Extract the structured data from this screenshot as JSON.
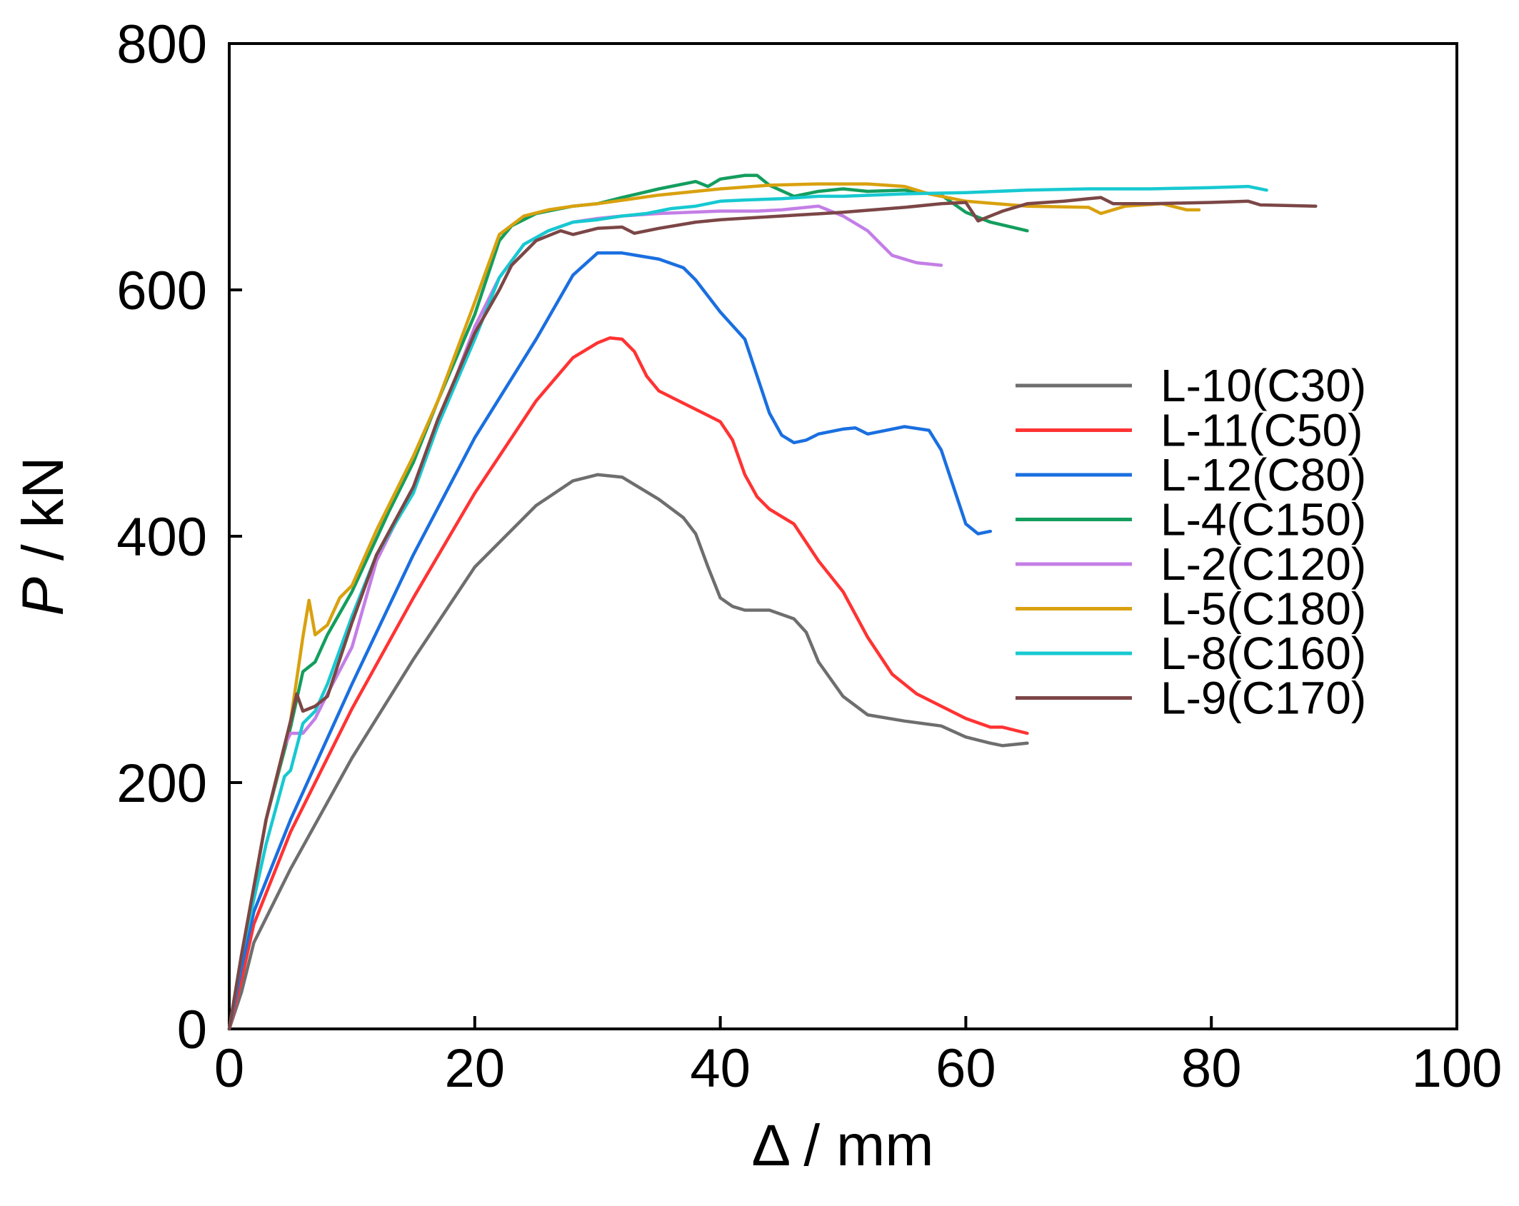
{
  "chart_data": {
    "type": "line",
    "title": "",
    "xlabel_symbol": "Δ",
    "xlabel_unit": " / mm",
    "ylabel_symbol": "P",
    "ylabel_unit": " / kN",
    "xlim": [
      0,
      100
    ],
    "ylim": [
      0,
      800
    ],
    "xticks": [
      0,
      20,
      40,
      60,
      80,
      100
    ],
    "yticks": [
      0,
      200,
      400,
      600,
      800
    ],
    "grid": false,
    "legend_position": "right-middle",
    "series": [
      {
        "name": "L-10(C30)",
        "color": "#6e6e6e",
        "points": [
          [
            0,
            0
          ],
          [
            1,
            30
          ],
          [
            2,
            70
          ],
          [
            5,
            130
          ],
          [
            10,
            220
          ],
          [
            15,
            300
          ],
          [
            20,
            375
          ],
          [
            25,
            425
          ],
          [
            28,
            445
          ],
          [
            30,
            450
          ],
          [
            32,
            448
          ],
          [
            35,
            430
          ],
          [
            37,
            415
          ],
          [
            38,
            402
          ],
          [
            39,
            375
          ],
          [
            40,
            350
          ],
          [
            41,
            343
          ],
          [
            42,
            340
          ],
          [
            44,
            340
          ],
          [
            46,
            333
          ],
          [
            47,
            322
          ],
          [
            48,
            298
          ],
          [
            50,
            270
          ],
          [
            52,
            255
          ],
          [
            55,
            250
          ],
          [
            58,
            246
          ],
          [
            60,
            237
          ],
          [
            62,
            232
          ],
          [
            63,
            230
          ],
          [
            65,
            232
          ]
        ]
      },
      {
        "name": "L-11(C50)",
        "color": "#ff3333",
        "points": [
          [
            0,
            0
          ],
          [
            1,
            40
          ],
          [
            2,
            85
          ],
          [
            5,
            160
          ],
          [
            10,
            260
          ],
          [
            15,
            350
          ],
          [
            20,
            435
          ],
          [
            25,
            510
          ],
          [
            28,
            545
          ],
          [
            30,
            557
          ],
          [
            31,
            561
          ],
          [
            32,
            560
          ],
          [
            33,
            550
          ],
          [
            34,
            530
          ],
          [
            35,
            518
          ],
          [
            37,
            508
          ],
          [
            39,
            498
          ],
          [
            40,
            493
          ],
          [
            41,
            478
          ],
          [
            42,
            450
          ],
          [
            43,
            432
          ],
          [
            44,
            422
          ],
          [
            46,
            410
          ],
          [
            47,
            395
          ],
          [
            48,
            380
          ],
          [
            50,
            355
          ],
          [
            52,
            318
          ],
          [
            54,
            288
          ],
          [
            56,
            272
          ],
          [
            58,
            262
          ],
          [
            60,
            252
          ],
          [
            62,
            245
          ],
          [
            63,
            245
          ],
          [
            65,
            240
          ]
        ]
      },
      {
        "name": "L-12(C80)",
        "color": "#1a6fe0",
        "points": [
          [
            0,
            0
          ],
          [
            1,
            50
          ],
          [
            2,
            95
          ],
          [
            5,
            170
          ],
          [
            10,
            280
          ],
          [
            15,
            385
          ],
          [
            20,
            480
          ],
          [
            25,
            560
          ],
          [
            28,
            612
          ],
          [
            30,
            630
          ],
          [
            32,
            630
          ],
          [
            35,
            625
          ],
          [
            37,
            618
          ],
          [
            38,
            608
          ],
          [
            40,
            582
          ],
          [
            42,
            560
          ],
          [
            43,
            530
          ],
          [
            44,
            500
          ],
          [
            45,
            482
          ],
          [
            46,
            476
          ],
          [
            47,
            478
          ],
          [
            48,
            483
          ],
          [
            50,
            487
          ],
          [
            51,
            488
          ],
          [
            52,
            483
          ],
          [
            53,
            485
          ],
          [
            55,
            489
          ],
          [
            57,
            486
          ],
          [
            58,
            470
          ],
          [
            59,
            440
          ],
          [
            60,
            410
          ],
          [
            61,
            402
          ],
          [
            62,
            404
          ]
        ]
      },
      {
        "name": "L-4(C150)",
        "color": "#139e5e",
        "points": [
          [
            0,
            0
          ],
          [
            1,
            60
          ],
          [
            3,
            170
          ],
          [
            5,
            245
          ],
          [
            6,
            290
          ],
          [
            7,
            298
          ],
          [
            8,
            320
          ],
          [
            10,
            355
          ],
          [
            13,
            420
          ],
          [
            15,
            460
          ],
          [
            17,
            510
          ],
          [
            20,
            580
          ],
          [
            22,
            640
          ],
          [
            23,
            652
          ],
          [
            25,
            662
          ],
          [
            28,
            668
          ],
          [
            30,
            670
          ],
          [
            32,
            675
          ],
          [
            35,
            682
          ],
          [
            38,
            688
          ],
          [
            39,
            684
          ],
          [
            40,
            690
          ],
          [
            42,
            693
          ],
          [
            43,
            693
          ],
          [
            44,
            685
          ],
          [
            46,
            676
          ],
          [
            48,
            680
          ],
          [
            50,
            682
          ],
          [
            52,
            680
          ],
          [
            55,
            681
          ],
          [
            58,
            677
          ],
          [
            60,
            663
          ],
          [
            62,
            655
          ],
          [
            65,
            648
          ]
        ]
      },
      {
        "name": "L-2(C120)",
        "color": "#c47ee6",
        "points": [
          [
            0,
            0
          ],
          [
            1,
            60
          ],
          [
            3,
            170
          ],
          [
            4.5,
            230
          ],
          [
            5,
            240
          ],
          [
            6,
            240
          ],
          [
            7,
            252
          ],
          [
            8,
            272
          ],
          [
            10,
            310
          ],
          [
            12,
            380
          ],
          [
            15,
            440
          ],
          [
            17,
            490
          ],
          [
            20,
            570
          ],
          [
            22,
            610
          ],
          [
            24,
            637
          ],
          [
            26,
            648
          ],
          [
            28,
            655
          ],
          [
            30,
            658
          ],
          [
            32,
            660
          ],
          [
            35,
            662
          ],
          [
            40,
            664
          ],
          [
            43,
            664
          ],
          [
            45,
            665
          ],
          [
            48,
            668
          ],
          [
            50,
            660
          ],
          [
            52,
            648
          ],
          [
            53,
            638
          ],
          [
            54,
            628
          ],
          [
            56,
            622
          ],
          [
            58,
            620
          ]
        ]
      },
      {
        "name": "L-5(C180)",
        "color": "#d9a10f",
        "points": [
          [
            0,
            0
          ],
          [
            1,
            60
          ],
          [
            3,
            170
          ],
          [
            5,
            250
          ],
          [
            6,
            318
          ],
          [
            6.5,
            348
          ],
          [
            7,
            320
          ],
          [
            8,
            328
          ],
          [
            9,
            350
          ],
          [
            10,
            360
          ],
          [
            12,
            405
          ],
          [
            15,
            465
          ],
          [
            17,
            510
          ],
          [
            20,
            590
          ],
          [
            22,
            645
          ],
          [
            24,
            660
          ],
          [
            26,
            665
          ],
          [
            28,
            668
          ],
          [
            30,
            670
          ],
          [
            35,
            677
          ],
          [
            40,
            682
          ],
          [
            44,
            685
          ],
          [
            48,
            686
          ],
          [
            52,
            686
          ],
          [
            55,
            684
          ],
          [
            57,
            678
          ],
          [
            60,
            672
          ],
          [
            65,
            668
          ],
          [
            70,
            667
          ],
          [
            71,
            662
          ],
          [
            73,
            668
          ],
          [
            76,
            670
          ],
          [
            78,
            665
          ],
          [
            79,
            665
          ]
        ]
      },
      {
        "name": "L-8(C160)",
        "color": "#17c9d1",
        "points": [
          [
            0,
            0
          ],
          [
            1,
            60
          ],
          [
            3,
            150
          ],
          [
            4.5,
            205
          ],
          [
            5,
            210
          ],
          [
            6,
            248
          ],
          [
            7,
            258
          ],
          [
            8,
            280
          ],
          [
            10,
            335
          ],
          [
            12,
            385
          ],
          [
            15,
            435
          ],
          [
            17,
            490
          ],
          [
            20,
            560
          ],
          [
            22,
            610
          ],
          [
            24,
            637
          ],
          [
            26,
            648
          ],
          [
            28,
            655
          ],
          [
            30,
            657
          ],
          [
            32,
            660
          ],
          [
            34,
            662
          ],
          [
            36,
            666
          ],
          [
            38,
            668
          ],
          [
            40,
            672
          ],
          [
            42,
            673
          ],
          [
            45,
            674
          ],
          [
            48,
            676
          ],
          [
            50,
            676
          ],
          [
            55,
            678
          ],
          [
            60,
            679
          ],
          [
            65,
            681
          ],
          [
            70,
            682
          ],
          [
            75,
            682
          ],
          [
            80,
            683
          ],
          [
            83,
            684
          ],
          [
            84.5,
            681
          ]
        ]
      },
      {
        "name": "L-9(C170)",
        "color": "#7c4646",
        "points": [
          [
            0,
            0
          ],
          [
            1,
            60
          ],
          [
            3,
            170
          ],
          [
            5,
            250
          ],
          [
            5.5,
            272
          ],
          [
            6,
            258
          ],
          [
            7,
            262
          ],
          [
            8,
            270
          ],
          [
            10,
            330
          ],
          [
            12,
            385
          ],
          [
            15,
            440
          ],
          [
            17,
            495
          ],
          [
            20,
            565
          ],
          [
            22,
            600
          ],
          [
            23,
            620
          ],
          [
            25,
            640
          ],
          [
            27,
            648
          ],
          [
            28,
            645
          ],
          [
            30,
            650
          ],
          [
            32,
            651
          ],
          [
            33,
            646
          ],
          [
            35,
            650
          ],
          [
            38,
            655
          ],
          [
            40,
            657
          ],
          [
            45,
            660
          ],
          [
            50,
            663
          ],
          [
            55,
            667
          ],
          [
            58,
            670
          ],
          [
            60,
            671
          ],
          [
            61,
            656
          ],
          [
            63,
            664
          ],
          [
            65,
            670
          ],
          [
            68,
            672
          ],
          [
            70,
            674
          ],
          [
            71,
            675
          ],
          [
            72,
            670
          ],
          [
            75,
            670
          ],
          [
            80,
            671
          ],
          [
            83,
            672
          ],
          [
            84,
            669
          ],
          [
            88.5,
            668
          ]
        ]
      }
    ]
  }
}
